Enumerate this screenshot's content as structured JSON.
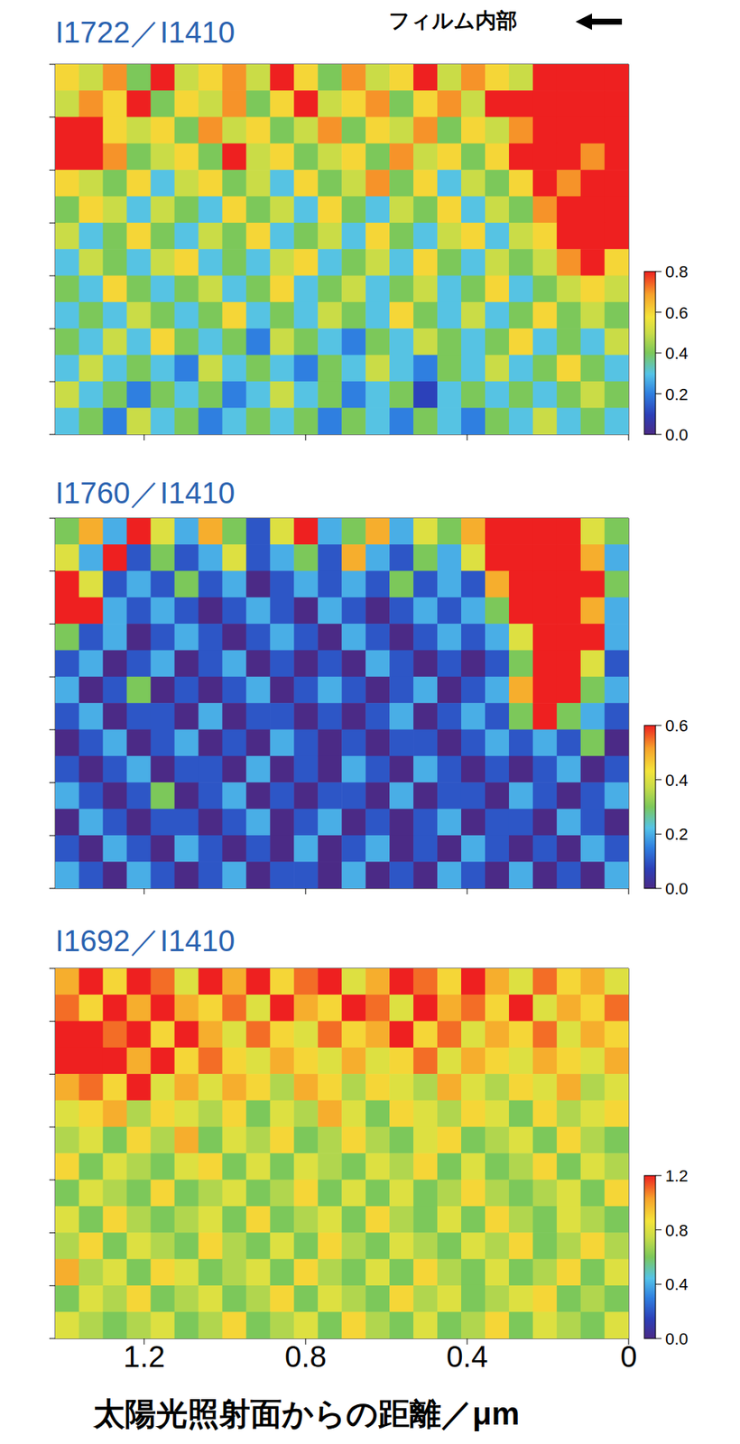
{
  "annotation": "フィルム内部",
  "chart_data": [
    {
      "type": "heatmap",
      "title": "I1722／I1410",
      "xlim": [
        1.42,
        0
      ],
      "xticks": [
        1.2,
        0.8,
        0.4,
        0
      ],
      "ylim": [
        0,
        7
      ],
      "yticks": [
        0,
        1,
        2,
        3,
        4,
        5,
        6,
        7
      ],
      "tick_labels": false,
      "colorbar": {
        "range": [
          0,
          0.8
        ],
        "ticks": [
          {
            "value": 0,
            "label": "0.0"
          },
          0.2,
          0.4,
          0.6,
          0.8
        ]
      },
      "cells": [
        [
          0.6,
          0.5,
          0.7,
          0.4,
          0.8,
          0.5,
          0.6,
          0.7,
          0.5,
          0.8,
          0.6,
          0.4,
          0.7,
          0.5,
          0.6,
          0.8,
          0.5,
          0.7,
          0.6,
          0.5,
          0.8,
          0.9,
          0.9,
          0.9
        ],
        [
          0.5,
          0.7,
          0.6,
          0.8,
          0.4,
          0.6,
          0.5,
          0.7,
          0.4,
          0.6,
          0.8,
          0.5,
          0.6,
          0.7,
          0.4,
          0.6,
          0.7,
          0.5,
          0.8,
          0.9,
          0.8,
          0.9,
          0.9,
          0.9
        ],
        [
          0.8,
          0.9,
          0.6,
          0.5,
          0.6,
          0.4,
          0.7,
          0.5,
          0.6,
          0.4,
          0.5,
          0.7,
          0.4,
          0.6,
          0.5,
          0.7,
          0.4,
          0.6,
          0.5,
          0.7,
          0.9,
          0.8,
          0.9,
          0.8
        ],
        [
          0.9,
          0.8,
          0.7,
          0.4,
          0.5,
          0.6,
          0.4,
          0.8,
          0.5,
          0.6,
          0.4,
          0.5,
          0.6,
          0.4,
          0.7,
          0.5,
          0.6,
          0.4,
          0.6,
          0.8,
          0.9,
          0.9,
          0.7,
          0.9
        ],
        [
          0.6,
          0.5,
          0.4,
          0.6,
          0.3,
          0.5,
          0.6,
          0.4,
          0.5,
          0.3,
          0.6,
          0.4,
          0.5,
          0.7,
          0.4,
          0.6,
          0.3,
          0.5,
          0.4,
          0.6,
          0.8,
          0.7,
          0.9,
          0.8
        ],
        [
          0.4,
          0.6,
          0.5,
          0.3,
          0.5,
          0.4,
          0.3,
          0.6,
          0.4,
          0.5,
          0.3,
          0.6,
          0.4,
          0.3,
          0.5,
          0.4,
          0.6,
          0.3,
          0.5,
          0.4,
          0.7,
          0.9,
          0.8,
          0.9
        ],
        [
          0.5,
          0.3,
          0.4,
          0.6,
          0.4,
          0.3,
          0.5,
          0.4,
          0.6,
          0.3,
          0.4,
          0.5,
          0.3,
          0.6,
          0.4,
          0.3,
          0.5,
          0.6,
          0.3,
          0.5,
          0.6,
          0.8,
          0.9,
          0.8
        ],
        [
          0.3,
          0.5,
          0.4,
          0.3,
          0.5,
          0.6,
          0.3,
          0.4,
          0.3,
          0.5,
          0.6,
          0.3,
          0.4,
          0.5,
          0.3,
          0.6,
          0.4,
          0.3,
          0.5,
          0.4,
          0.5,
          0.7,
          0.9,
          0.6
        ],
        [
          0.4,
          0.3,
          0.6,
          0.4,
          0.3,
          0.4,
          0.5,
          0.3,
          0.4,
          0.6,
          0.3,
          0.4,
          0.5,
          0.3,
          0.4,
          0.5,
          0.3,
          0.4,
          0.6,
          0.3,
          0.4,
          0.5,
          0.6,
          0.5
        ],
        [
          0.3,
          0.4,
          0.3,
          0.5,
          0.4,
          0.3,
          0.4,
          0.6,
          0.3,
          0.4,
          0.3,
          0.5,
          0.4,
          0.3,
          0.6,
          0.4,
          0.3,
          0.5,
          0.3,
          0.4,
          0.6,
          0.4,
          0.5,
          0.4
        ],
        [
          0.4,
          0.3,
          0.5,
          0.3,
          0.6,
          0.4,
          0.3,
          0.4,
          0.2,
          0.5,
          0.4,
          0.3,
          0.2,
          0.4,
          0.3,
          0.5,
          0.4,
          0.3,
          0.4,
          0.6,
          0.3,
          0.4,
          0.3,
          0.5
        ],
        [
          0.3,
          0.5,
          0.3,
          0.4,
          0.3,
          0.2,
          0.5,
          0.3,
          0.4,
          0.3,
          0.2,
          0.4,
          0.3,
          0.5,
          0.3,
          0.2,
          0.4,
          0.3,
          0.5,
          0.3,
          0.4,
          0.6,
          0.4,
          0.3
        ],
        [
          0.5,
          0.3,
          0.4,
          0.2,
          0.4,
          0.3,
          0.4,
          0.2,
          0.3,
          0.5,
          0.3,
          0.4,
          0.2,
          0.3,
          0.4,
          0.1,
          0.3,
          0.4,
          0.3,
          0.4,
          0.3,
          0.4,
          0.5,
          0.4
        ],
        [
          0.3,
          0.4,
          0.2,
          0.5,
          0.3,
          0.4,
          0.2,
          0.3,
          0.4,
          0.3,
          0.4,
          0.2,
          0.4,
          0.3,
          0.2,
          0.4,
          0.3,
          0.2,
          0.4,
          0.3,
          0.5,
          0.3,
          0.4,
          0.3
        ]
      ]
    },
    {
      "type": "heatmap",
      "title": "I1760／I1410",
      "xlim": [
        1.42,
        0
      ],
      "xticks": [
        1.2,
        0.8,
        0.4,
        0
      ],
      "ylim": [
        0,
        7
      ],
      "yticks": [
        0,
        1,
        2,
        3,
        4,
        5,
        6,
        7
      ],
      "tick_labels": false,
      "colorbar": {
        "range": [
          0,
          0.6
        ],
        "ticks": [
          {
            "value": 0,
            "label": "0.0"
          },
          0.2,
          0.4,
          0.6
        ]
      },
      "cells": [
        [
          0.3,
          0.5,
          0.2,
          0.6,
          0.4,
          0.2,
          0.5,
          0.3,
          0.1,
          0.4,
          0.6,
          0.2,
          0.3,
          0.5,
          0.2,
          0.4,
          0.3,
          0.5,
          0.7,
          0.8,
          0.7,
          0.6,
          0.4,
          0.3
        ],
        [
          0.4,
          0.2,
          0.6,
          0.1,
          0.3,
          0.1,
          0.2,
          0.4,
          0.1,
          0.2,
          0.3,
          0.1,
          0.5,
          0.2,
          0.1,
          0.3,
          0.2,
          0.4,
          0.7,
          0.8,
          0.8,
          0.7,
          0.5,
          0.2
        ],
        [
          0.7,
          0.4,
          0.1,
          0.2,
          0.1,
          0.3,
          0.1,
          0.2,
          0.0,
          0.1,
          0.2,
          0.1,
          0.2,
          0.1,
          0.3,
          0.1,
          0.2,
          0.1,
          0.5,
          0.7,
          0.8,
          0.7,
          0.6,
          0.3
        ],
        [
          0.8,
          0.6,
          0.2,
          0.1,
          0.2,
          0.1,
          0.0,
          0.1,
          0.2,
          0.1,
          0.0,
          0.2,
          0.1,
          0.0,
          0.1,
          0.2,
          0.1,
          0.2,
          0.3,
          0.6,
          0.7,
          0.8,
          0.5,
          0.2
        ],
        [
          0.3,
          0.1,
          0.2,
          0.0,
          0.1,
          0.2,
          0.1,
          0.0,
          0.1,
          0.2,
          0.1,
          0.0,
          0.2,
          0.1,
          0.0,
          0.1,
          0.2,
          0.1,
          0.2,
          0.4,
          0.7,
          0.7,
          0.6,
          0.2
        ],
        [
          0.1,
          0.2,
          0.0,
          0.1,
          0.2,
          0.0,
          0.1,
          0.2,
          0.0,
          0.1,
          0.0,
          0.1,
          0.0,
          0.2,
          0.1,
          0.0,
          0.1,
          0.0,
          0.1,
          0.3,
          0.7,
          0.8,
          0.4,
          0.1
        ],
        [
          0.2,
          0.0,
          0.1,
          0.3,
          0.0,
          0.1,
          0.0,
          0.1,
          0.2,
          0.0,
          0.1,
          0.2,
          0.1,
          0.0,
          0.1,
          0.2,
          0.0,
          0.1,
          0.2,
          0.5,
          0.8,
          0.6,
          0.3,
          0.2
        ],
        [
          0.1,
          0.2,
          0.0,
          0.1,
          0.1,
          0.0,
          0.2,
          0.0,
          0.1,
          0.1,
          0.0,
          0.1,
          0.0,
          0.1,
          0.2,
          0.0,
          0.1,
          0.2,
          0.1,
          0.3,
          0.6,
          0.3,
          0.2,
          0.1
        ],
        [
          0.0,
          0.1,
          0.2,
          0.0,
          0.1,
          0.2,
          0.0,
          0.1,
          0.0,
          0.2,
          0.1,
          0.0,
          0.1,
          0.0,
          0.1,
          0.1,
          0.0,
          0.1,
          0.2,
          0.1,
          0.2,
          0.1,
          0.3,
          0.0
        ],
        [
          0.1,
          0.0,
          0.1,
          0.2,
          0.0,
          0.1,
          0.1,
          0.0,
          0.2,
          0.0,
          0.1,
          0.0,
          0.2,
          0.1,
          0.0,
          0.2,
          0.1,
          0.0,
          0.1,
          0.0,
          0.1,
          0.2,
          0.0,
          0.1
        ],
        [
          0.2,
          0.1,
          0.0,
          0.1,
          0.3,
          0.0,
          0.1,
          0.2,
          0.0,
          0.1,
          0.0,
          0.1,
          0.1,
          0.0,
          0.2,
          0.0,
          0.1,
          0.1,
          0.0,
          0.2,
          0.1,
          0.0,
          0.1,
          0.2
        ],
        [
          0.0,
          0.2,
          0.1,
          0.0,
          0.1,
          0.1,
          0.0,
          0.1,
          0.2,
          0.0,
          0.1,
          0.2,
          0.0,
          0.1,
          0.0,
          0.1,
          0.2,
          0.0,
          0.1,
          0.1,
          0.0,
          0.2,
          0.1,
          0.0
        ],
        [
          0.1,
          0.0,
          0.2,
          0.1,
          0.0,
          0.2,
          0.1,
          0.0,
          0.1,
          0.0,
          0.2,
          0.0,
          0.1,
          0.2,
          0.0,
          0.1,
          0.0,
          0.2,
          0.1,
          0.0,
          0.1,
          0.0,
          0.2,
          0.1
        ],
        [
          0.2,
          0.1,
          0.0,
          0.2,
          0.1,
          0.0,
          0.1,
          0.2,
          0.0,
          0.1,
          0.1,
          0.0,
          0.2,
          0.0,
          0.1,
          0.0,
          0.2,
          0.1,
          0.0,
          0.2,
          0.0,
          0.1,
          0.0,
          0.2
        ]
      ]
    },
    {
      "type": "heatmap",
      "title": "I1692／I1410",
      "xlim": [
        1.42,
        0
      ],
      "xticks": [
        1.2,
        0.8,
        0.4,
        0
      ],
      "ylim": [
        0,
        7
      ],
      "yticks": [
        0,
        1,
        2,
        3,
        4,
        5,
        6,
        7
      ],
      "tick_labels": "x",
      "x_label": "太陽光照射面からの距離／μm",
      "colorbar": {
        "range": [
          0,
          1.2
        ],
        "ticks": [
          {
            "value": 0,
            "label": "0.0"
          },
          0.4,
          0.8,
          1.2
        ]
      },
      "cells": [
        [
          1.0,
          1.2,
          0.9,
          1.3,
          1.1,
          0.8,
          1.2,
          1.0,
          1.3,
          0.9,
          1.1,
          1.2,
          0.8,
          1.0,
          1.3,
          1.1,
          0.9,
          1.2,
          1.0,
          0.8,
          1.1,
          0.9,
          1.0,
          0.8
        ],
        [
          1.1,
          0.9,
          1.3,
          1.0,
          1.2,
          1.0,
          0.9,
          1.1,
          0.8,
          1.2,
          1.0,
          0.9,
          1.3,
          1.1,
          0.8,
          1.2,
          1.0,
          1.1,
          0.9,
          1.2,
          0.8,
          1.0,
          0.9,
          1.1
        ],
        [
          1.2,
          1.3,
          1.1,
          1.3,
          0.9,
          1.2,
          1.0,
          0.8,
          1.1,
          0.9,
          0.8,
          1.1,
          0.9,
          1.0,
          1.2,
          0.9,
          1.1,
          0.8,
          1.0,
          0.9,
          1.1,
          0.8,
          1.0,
          0.9
        ],
        [
          1.3,
          1.2,
          1.3,
          1.0,
          1.2,
          0.9,
          1.1,
          0.9,
          0.8,
          1.0,
          0.9,
          0.8,
          1.0,
          0.8,
          0.9,
          1.1,
          0.8,
          1.0,
          0.9,
          0.8,
          1.0,
          0.9,
          0.8,
          1.0
        ],
        [
          1.0,
          1.1,
          0.9,
          1.2,
          0.8,
          1.0,
          0.8,
          1.0,
          0.9,
          0.7,
          1.0,
          0.9,
          0.7,
          0.9,
          0.8,
          0.7,
          1.0,
          0.8,
          0.7,
          0.9,
          0.8,
          1.0,
          0.7,
          0.8
        ],
        [
          0.8,
          0.9,
          1.0,
          0.7,
          0.9,
          0.8,
          0.7,
          0.9,
          0.6,
          0.8,
          0.7,
          1.0,
          0.8,
          0.6,
          0.9,
          0.8,
          0.7,
          0.9,
          0.8,
          0.6,
          0.9,
          0.7,
          0.8,
          0.9
        ],
        [
          0.7,
          0.8,
          0.6,
          0.9,
          0.7,
          1.0,
          0.6,
          0.8,
          0.7,
          0.9,
          0.6,
          0.7,
          0.9,
          0.7,
          0.6,
          0.8,
          0.9,
          0.6,
          0.7,
          0.8,
          0.6,
          0.9,
          0.7,
          0.6
        ],
        [
          0.9,
          0.6,
          0.8,
          0.7,
          0.6,
          0.8,
          0.9,
          0.6,
          0.8,
          0.6,
          0.8,
          0.7,
          0.6,
          0.8,
          0.7,
          0.9,
          0.6,
          0.8,
          0.6,
          0.7,
          0.9,
          0.6,
          0.8,
          0.7
        ],
        [
          0.6,
          0.8,
          0.7,
          0.6,
          0.9,
          0.6,
          0.7,
          0.8,
          0.6,
          0.7,
          0.9,
          0.6,
          0.8,
          0.6,
          0.8,
          0.6,
          0.7,
          0.9,
          0.7,
          0.6,
          0.7,
          0.8,
          0.6,
          0.9
        ],
        [
          0.8,
          0.6,
          0.9,
          0.7,
          0.6,
          0.7,
          0.8,
          0.6,
          0.9,
          0.6,
          0.7,
          0.8,
          0.6,
          0.9,
          0.7,
          0.6,
          0.8,
          0.6,
          0.9,
          0.7,
          0.6,
          0.8,
          0.7,
          0.6
        ],
        [
          0.7,
          0.9,
          0.6,
          0.8,
          0.7,
          0.6,
          0.9,
          0.7,
          0.6,
          0.8,
          0.6,
          0.9,
          0.7,
          0.6,
          0.8,
          0.7,
          0.6,
          0.8,
          0.7,
          0.9,
          0.6,
          0.7,
          0.9,
          0.7
        ],
        [
          1.0,
          0.7,
          0.8,
          0.6,
          0.9,
          0.8,
          0.6,
          0.7,
          0.8,
          0.6,
          0.9,
          0.7,
          0.6,
          0.8,
          0.6,
          0.9,
          0.7,
          0.6,
          0.8,
          0.6,
          0.7,
          0.9,
          0.6,
          0.8
        ],
        [
          0.6,
          0.8,
          0.7,
          0.9,
          0.6,
          0.7,
          0.8,
          0.6,
          0.7,
          0.9,
          0.6,
          0.8,
          0.7,
          0.6,
          0.9,
          0.7,
          0.8,
          0.6,
          0.7,
          0.8,
          0.9,
          0.6,
          0.7,
          0.6
        ],
        [
          0.8,
          0.7,
          0.6,
          0.7,
          0.8,
          0.6,
          0.7,
          0.9,
          0.6,
          0.7,
          0.8,
          0.6,
          0.9,
          0.7,
          0.6,
          0.8,
          0.6,
          0.7,
          0.9,
          0.6,
          0.8,
          0.7,
          0.6,
          0.8
        ]
      ]
    }
  ]
}
